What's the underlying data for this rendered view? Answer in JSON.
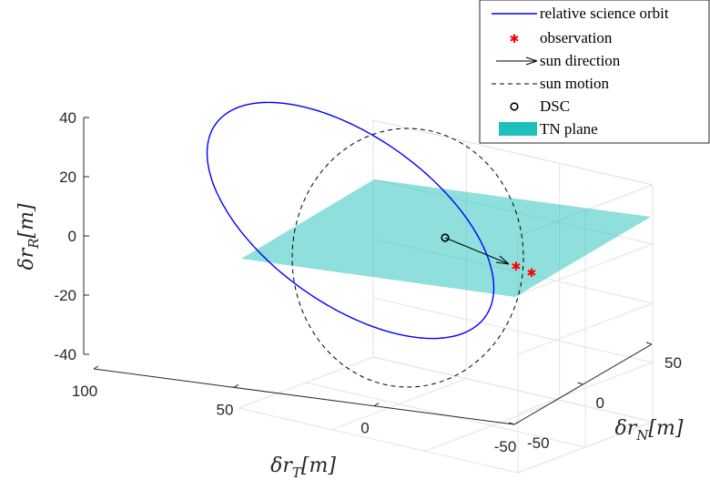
{
  "chart_data": {
    "type": "3d-line",
    "xlabel": "δr_T[m]",
    "ylabel": "δr_N[m]",
    "zlabel": "δr_R[m]",
    "axis_labels": {
      "T": {
        "main": "δr",
        "sub": "T",
        "unit": "[m]"
      },
      "N": {
        "main": "δr",
        "sub": "N",
        "unit": "[m]"
      },
      "R": {
        "main": "δr",
        "sub": "R",
        "unit": "[m]"
      }
    },
    "xlim": [
      -50,
      100
    ],
    "ylim": [
      -50,
      50
    ],
    "zlim": [
      -40,
      40
    ],
    "x_ticks": [
      "100",
      "50",
      "0",
      "-50"
    ],
    "y_ticks": [
      "50",
      "0",
      "-50"
    ],
    "z_ticks": [
      "40",
      "20",
      "0",
      "-20",
      "-40"
    ],
    "grid": true,
    "legend_position": "top-right",
    "legend": [
      {
        "label": "relative science orbit",
        "style": "line",
        "color": "#0000ff"
      },
      {
        "label": "observation",
        "style": "star-marker",
        "color": "#ff0000"
      },
      {
        "label": "sun direction",
        "style": "arrow",
        "color": "#000000"
      },
      {
        "label": "sun motion",
        "style": "dashed-line",
        "color": "#000000"
      },
      {
        "label": "DSC",
        "style": "circle-marker",
        "color": "#000000"
      },
      {
        "label": "TN plane",
        "style": "patch",
        "color": "#1fbfbb"
      }
    ],
    "series": [
      {
        "name": "relative science orbit",
        "kind": "ellipse",
        "color": "#0000ff",
        "center": [
          0,
          0,
          0
        ],
        "u": [
          45,
          -25,
          -8
        ],
        "v": [
          10,
          30,
          -35
        ]
      },
      {
        "name": "sun motion",
        "kind": "circle",
        "color": "#000000",
        "center": [
          0,
          0,
          0
        ],
        "u": [
          -28,
          -28,
          0
        ],
        "v": [
          0,
          0,
          40
        ]
      },
      {
        "name": "TN plane",
        "kind": "patch",
        "color": "#1fbfbb",
        "corners": [
          [
            -50,
            -50,
            0
          ],
          [
            100,
            -50,
            0
          ],
          [
            100,
            50,
            0
          ],
          [
            -50,
            50,
            0
          ]
        ]
      },
      {
        "name": "sun direction",
        "kind": "arrow",
        "color": "#000000",
        "from": [
          0,
          0,
          0
        ],
        "to": [
          -28,
          -28,
          0
        ]
      },
      {
        "name": "DSC",
        "kind": "point",
        "color": "#000000",
        "point": [
          0,
          0,
          0
        ]
      },
      {
        "name": "observation",
        "kind": "points",
        "color": "#ff0000",
        "points": [
          [
            -29,
            -29,
            0
          ],
          [
            -37,
            -31,
            0
          ]
        ]
      }
    ]
  }
}
